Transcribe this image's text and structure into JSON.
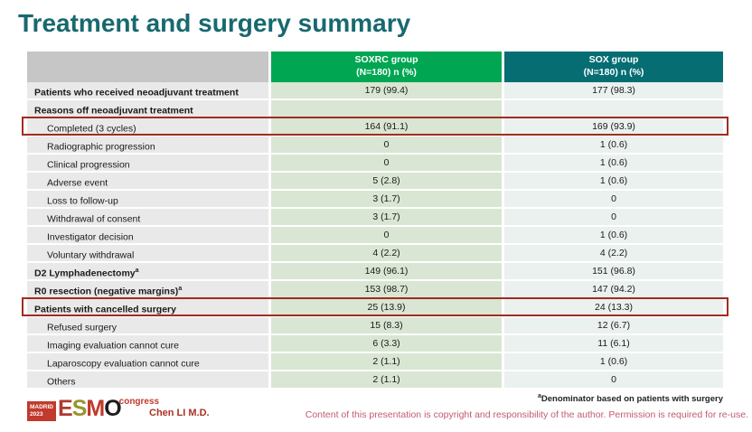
{
  "slide": {
    "title": "Treatment and surgery summary"
  },
  "table": {
    "columns": [
      {
        "label": "SOXRC group",
        "sublabel": "(N=180)  n (%)"
      },
      {
        "label": "SOX group",
        "sublabel": "(N=180)  n (%)"
      }
    ],
    "rows": [
      {
        "label": "Patients who received neoadjuvant treatment",
        "soxrc": "179 (99.4)",
        "sox": "177 (98.3)",
        "bold": true
      },
      {
        "label": "Reasons off neoadjuvant treatment",
        "soxrc": "",
        "sox": "",
        "bold": true
      },
      {
        "label": "Completed (3 cycles)",
        "soxrc": "164 (91.1)",
        "sox": "169 (93.9)",
        "indent": true,
        "highlight": true
      },
      {
        "label": "Radiographic progression",
        "soxrc": "0",
        "sox": "1 (0.6)",
        "indent": true
      },
      {
        "label": "Clinical progression",
        "soxrc": "0",
        "sox": "1 (0.6)",
        "indent": true
      },
      {
        "label": "Adverse event",
        "soxrc": "5 (2.8)",
        "sox": "1 (0.6)",
        "indent": true
      },
      {
        "label": "Loss to follow-up",
        "soxrc": "3 (1.7)",
        "sox": "0",
        "indent": true
      },
      {
        "label": "Withdrawal of consent",
        "soxrc": "3 (1.7)",
        "sox": "0",
        "indent": true
      },
      {
        "label": "Investigator decision",
        "soxrc": "0",
        "sox": "1 (0.6)",
        "indent": true
      },
      {
        "label": "Voluntary withdrawal",
        "soxrc": "4 (2.2)",
        "sox": "4 (2.2)",
        "indent": true
      },
      {
        "label": "D2 Lymphadenectomy",
        "sup": "a",
        "soxrc": "149 (96.1)",
        "sox": "151 (96.8)",
        "bold": true
      },
      {
        "label": "R0 resection (negative margins)",
        "sup": "a",
        "soxrc": "153 (98.7)",
        "sox": "147 (94.2)",
        "bold": true
      },
      {
        "label": "Patients with cancelled surgery",
        "soxrc": "25 (13.9)",
        "sox": "24 (13.3)",
        "bold": true,
        "highlight": true
      },
      {
        "label": "Refused surgery",
        "soxrc": "15 (8.3)",
        "sox": "12 (6.7)",
        "indent": true
      },
      {
        "label": "Imaging evaluation cannot cure",
        "soxrc": "6 (3.3)",
        "sox": "11 (6.1)",
        "indent": true
      },
      {
        "label": "Laparoscopy evaluation cannot cure",
        "soxrc": "2 (1.1)",
        "sox": "1 (0.6)",
        "indent": true
      },
      {
        "label": "Others",
        "soxrc": "2 (1.1)",
        "sox": "0",
        "indent": true
      }
    ]
  },
  "footer": {
    "logo_badge_line1": "MADRID",
    "logo_badge_line2": "2023",
    "logo_letters": [
      {
        "ch": "E",
        "color": "#B03A2E"
      },
      {
        "ch": "S",
        "color": "#97952E"
      },
      {
        "ch": "M",
        "color": "#C0392B"
      },
      {
        "ch": "O",
        "color": "#1C1C1C"
      }
    ],
    "logo_congress": "congress",
    "author": "Chen LI M.D.",
    "footnote_sup": "a",
    "footnote_text": "Denominator based on patients with surgery",
    "copyright": "Content of this presentation is copyright and responsibility of the author. Permission is required for re-use."
  },
  "colors": {
    "title_teal": "#17696F",
    "header_soxrc_bg": "#00A651",
    "header_sox_bg": "#066E73",
    "header_label_bg": "#C6C6C6",
    "cell_label_bg": "#E9E9E9",
    "cell_soxrc_bg": "#D9E6D3",
    "cell_sox_bg": "#EAF1EF",
    "highlight_border": "#A02C21",
    "author_red": "#A93226",
    "copyright_pink": "#C25B70",
    "logo_red": "#C13A2C"
  }
}
